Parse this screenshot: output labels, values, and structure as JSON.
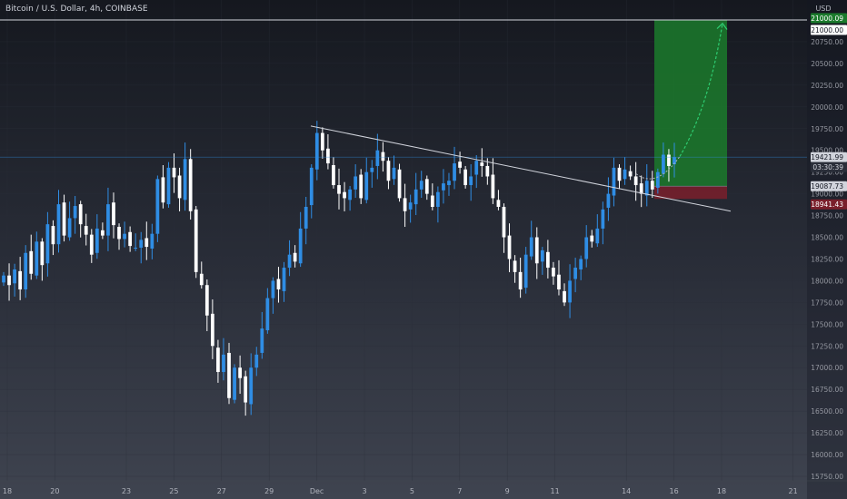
{
  "header": {
    "symbol_label": "Bitcoin / U.S. Dollar, 4h, COINBASE"
  },
  "axis": {
    "currency_label": "USD"
  },
  "chart_data": {
    "type": "candlestick",
    "symbol": "Bitcoin / U.S. Dollar",
    "interval": "4h",
    "exchange": "COINBASE",
    "ylim": [
      15750,
      21200
    ],
    "y_ticks": [
      "15750.00",
      "16000.00",
      "16250.00",
      "16500.00",
      "16750.00",
      "17000.00",
      "17250.00",
      "17500.00",
      "17750.00",
      "18000.00",
      "18250.00",
      "18500.00",
      "18750.00",
      "19000.00",
      "19250.00",
      "19500.00",
      "19750.00",
      "20000.00",
      "20250.00",
      "20500.00",
      "20750.00",
      "21000.00"
    ],
    "x_ticks": [
      {
        "label": "18",
        "day": 0
      },
      {
        "label": "20",
        "day": 2
      },
      {
        "label": "23",
        "day": 5
      },
      {
        "label": "25",
        "day": 7
      },
      {
        "label": "27",
        "day": 9
      },
      {
        "label": "29",
        "day": 11
      },
      {
        "label": "Dec",
        "day": 13
      },
      {
        "label": "3",
        "day": 15
      },
      {
        "label": "5",
        "day": 17
      },
      {
        "label": "7",
        "day": 19
      },
      {
        "label": "9",
        "day": 21
      },
      {
        "label": "11",
        "day": 23
      },
      {
        "label": "14",
        "day": 26
      },
      {
        "label": "16",
        "day": 28
      },
      {
        "label": "18",
        "day": 30
      },
      {
        "label": "21",
        "day": 33
      }
    ],
    "price_labels": {
      "target": "21000.09",
      "round": "21000.00",
      "last": "19421.99",
      "countdown": "03:30:39",
      "entry": "19087.73",
      "stop": "18941.43"
    },
    "position": {
      "entry": 19087.73,
      "target": 21000.09,
      "stop": 18941.43
    },
    "closes": [
      18060,
      17950,
      18130,
      17900,
      18320,
      18080,
      18450,
      18180,
      18650,
      18420,
      18880,
      18520,
      18720,
      18860,
      18650,
      18530,
      18300,
      18600,
      18520,
      18880,
      18640,
      18480,
      18540,
      18400,
      18380,
      18470,
      18390,
      18540,
      19170,
      18900,
      19300,
      19190,
      18950,
      19400,
      18800,
      18100,
      17950,
      17600,
      17250,
      16950,
      17150,
      16650,
      17000,
      16880,
      16600,
      17000,
      17150,
      17450,
      17800,
      18000,
      17900,
      18150,
      18300,
      18220,
      18600,
      18850,
      19300,
      19700,
      19500,
      19350,
      19100,
      19000,
      18950,
      19050,
      19200,
      18950,
      19250,
      19300,
      19500,
      19380,
      19150,
      19300,
      18950,
      18800,
      18900,
      19050,
      19150,
      19000,
      18850,
      19020,
      19120,
      19150,
      19350,
      19300,
      19100,
      19200,
      19380,
      19320,
      19200,
      18950,
      18850,
      18500,
      18250,
      18100,
      17900,
      18300,
      18500,
      18200,
      18350,
      18150,
      18050,
      17900,
      17750,
      18000,
      18150,
      18250,
      18500,
      18450,
      18600,
      18820,
      19000,
      19300,
      19150,
      19280,
      19200,
      19100,
      19000,
      19150,
      19050,
      19250,
      19450,
      19320,
      19422
    ]
  }
}
